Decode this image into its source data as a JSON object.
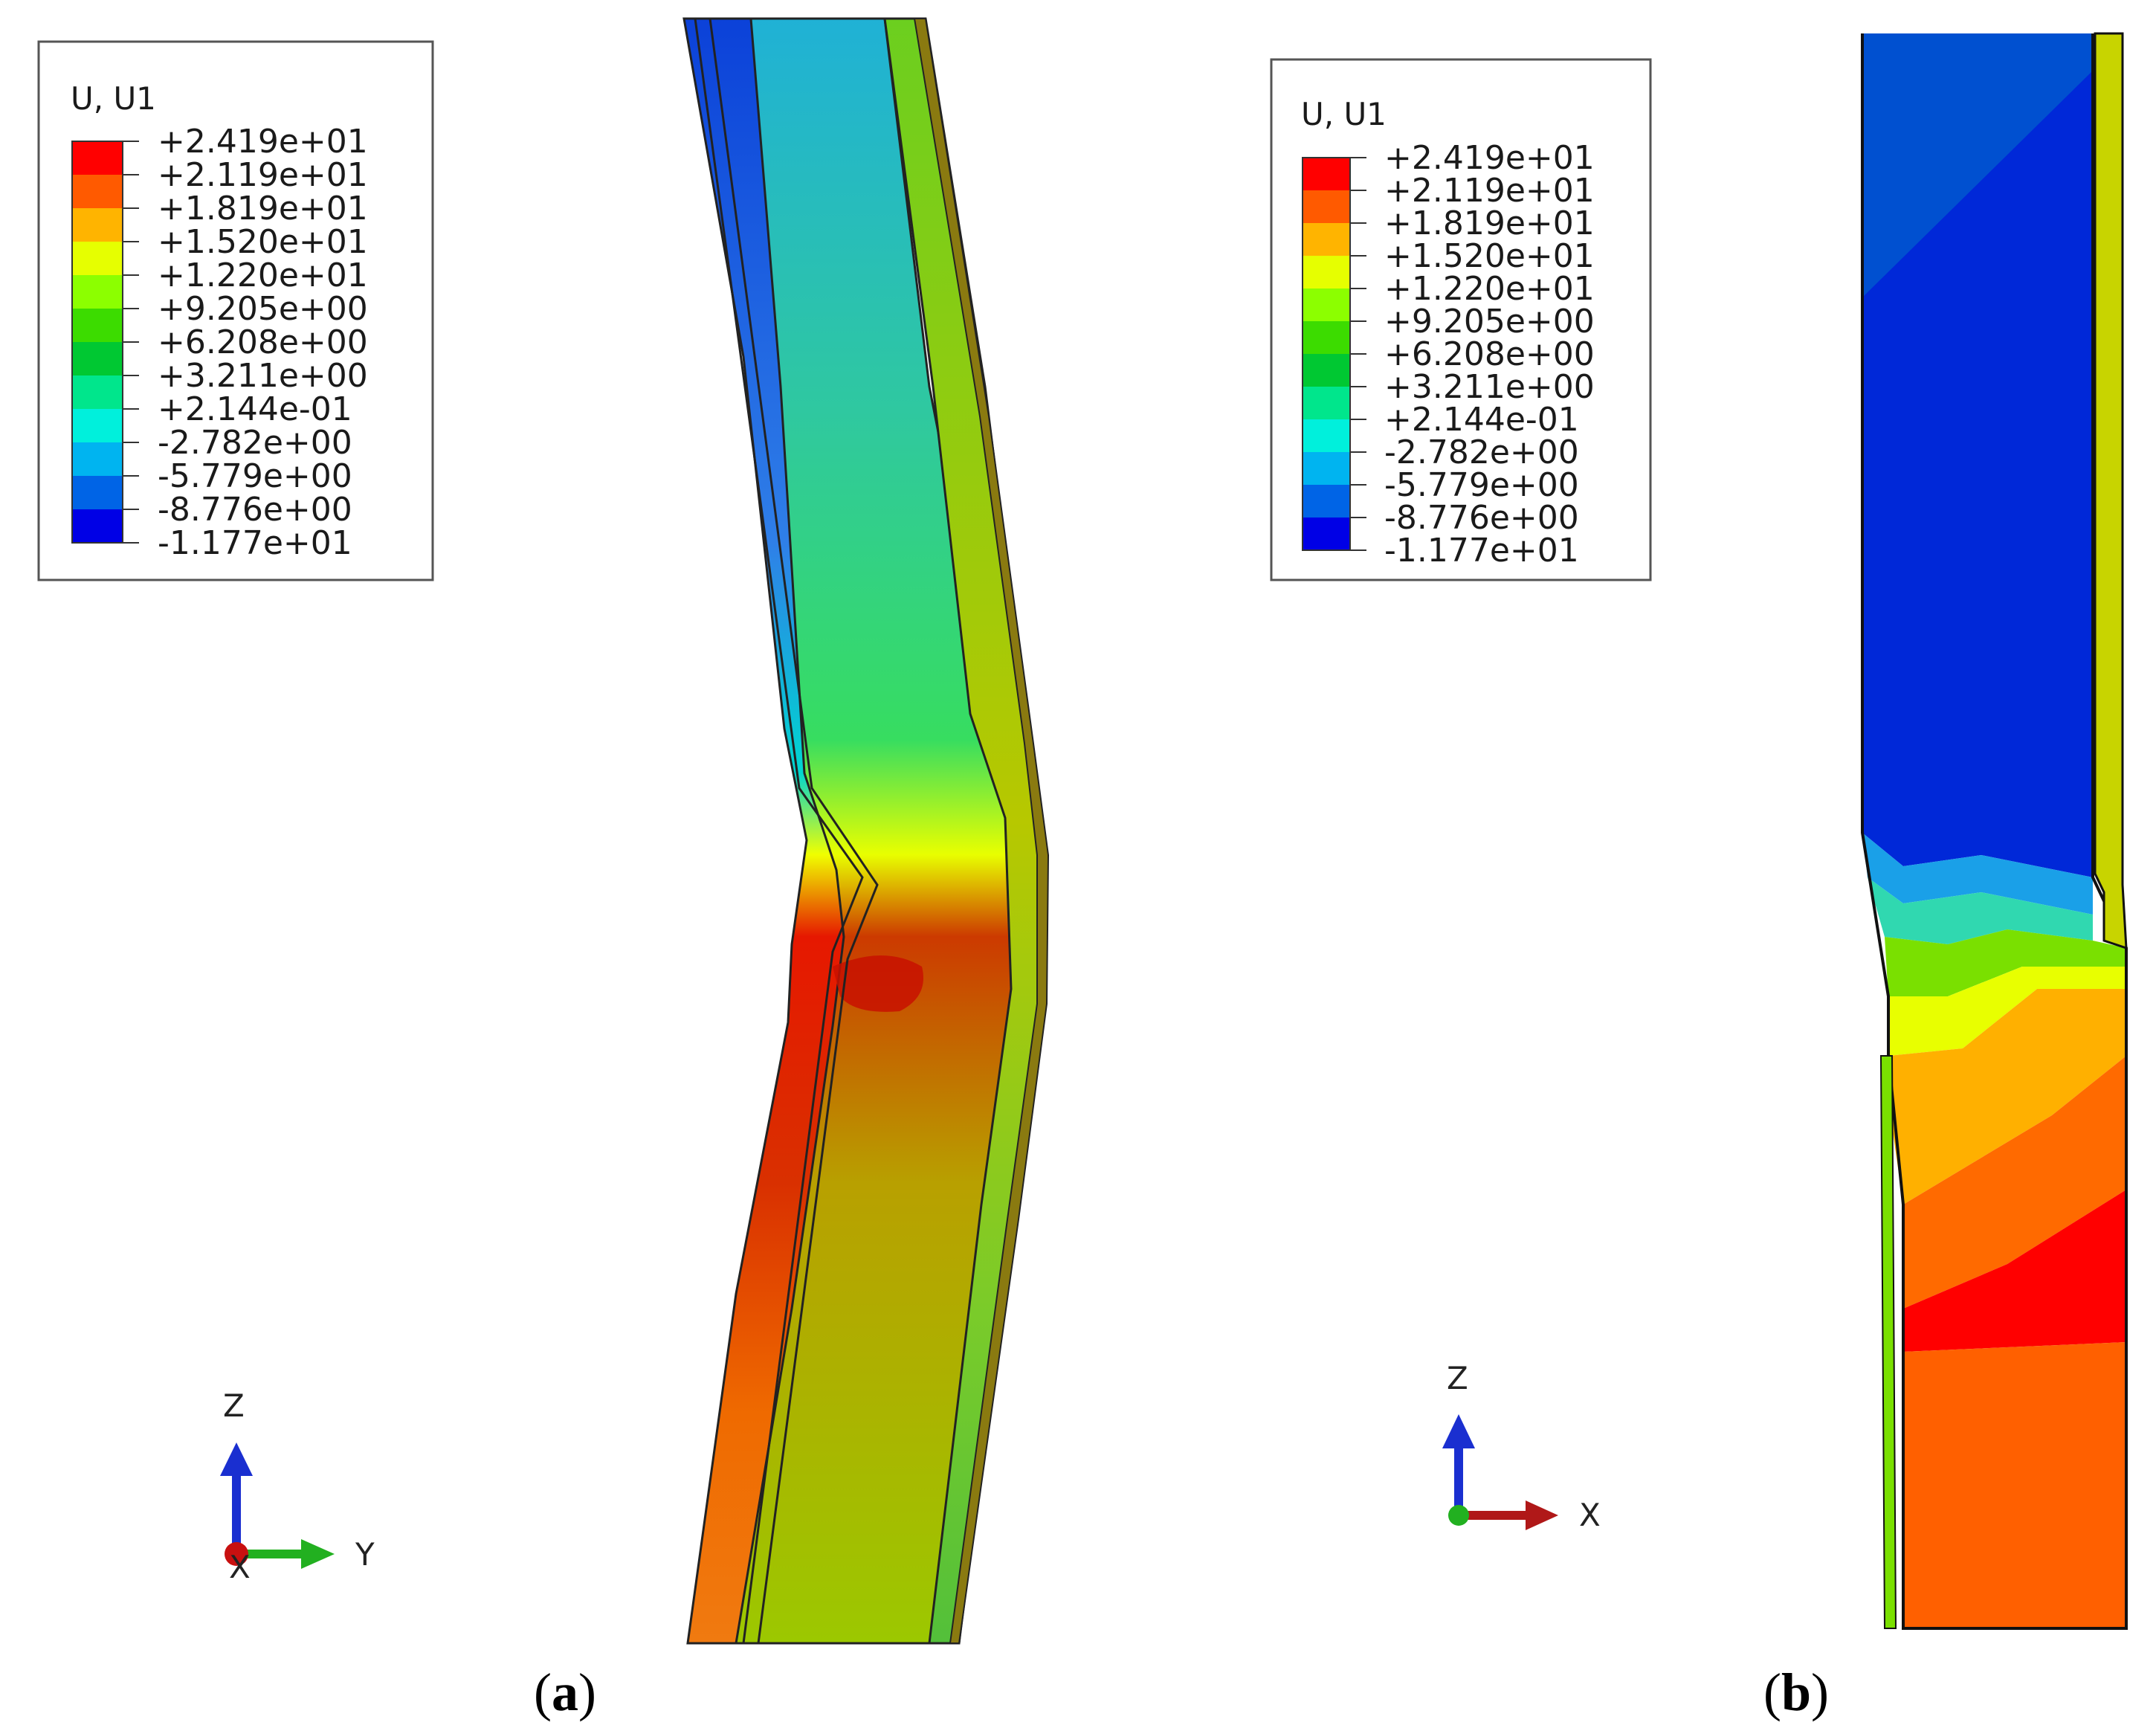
{
  "legend": {
    "title": "U, U1",
    "values": [
      "+2.419e+01",
      "+2.119e+01",
      "+1.819e+01",
      "+1.520e+01",
      "+1.220e+01",
      "+9.205e+00",
      "+6.208e+00",
      "+3.211e+00",
      "+2.144e-01",
      "-2.782e+00",
      "-5.779e+00",
      "-8.776e+00",
      "-1.177e+01"
    ],
    "colors": [
      "#ff0000",
      "#ff5a00",
      "#ffb400",
      "#e6ff00",
      "#8cff00",
      "#3cdc00",
      "#00c832",
      "#00e68c",
      "#00f0dc",
      "#00b4f0",
      "#0064e6",
      "#0000e6"
    ]
  },
  "panels": [
    {
      "label_open": "(",
      "label_letter": "a",
      "label_close": ")",
      "triad": {
        "up": "Z",
        "right": "Y",
        "out": "X"
      }
    },
    {
      "label_open": "(",
      "label_letter": "b",
      "label_close": ")",
      "triad": {
        "up": "Z",
        "right": "X"
      }
    }
  ]
}
